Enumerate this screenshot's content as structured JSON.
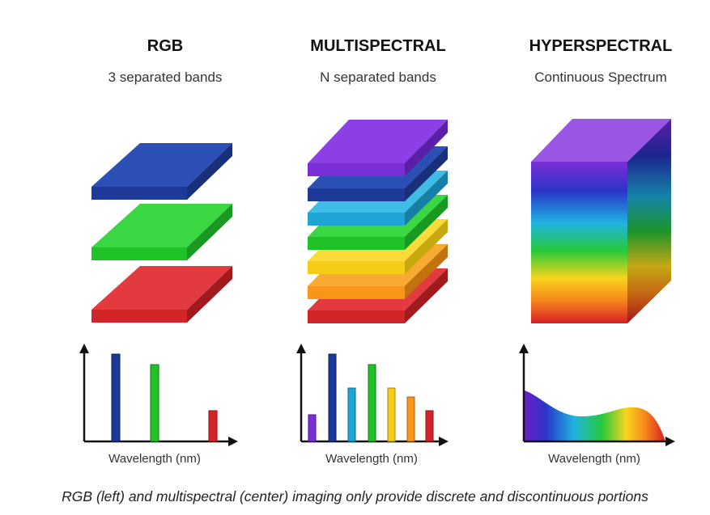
{
  "columns": [
    {
      "title": "RGB",
      "subtitle": "3 separated bands",
      "xlabel": "Wavelength (nm)"
    },
    {
      "title": "MULTISPECTRAL",
      "subtitle": "N separated bands",
      "xlabel": "Wavelength (nm)"
    },
    {
      "title": "HYPERSPECTRAL",
      "subtitle": "Continuous Spectrum",
      "xlabel": "Wavelength (nm)"
    }
  ],
  "colors": {
    "blue": "#1f3f9e",
    "green": "#22c62b",
    "red": "#d6282d",
    "violet": "#7b2ed6",
    "cyan": "#1fa8d8",
    "yellow": "#f7cf1a",
    "orange": "#f79a1c"
  },
  "caption": "RGB (left) and multispectral (center) imaging only provide discrete and discontinuous portions"
}
